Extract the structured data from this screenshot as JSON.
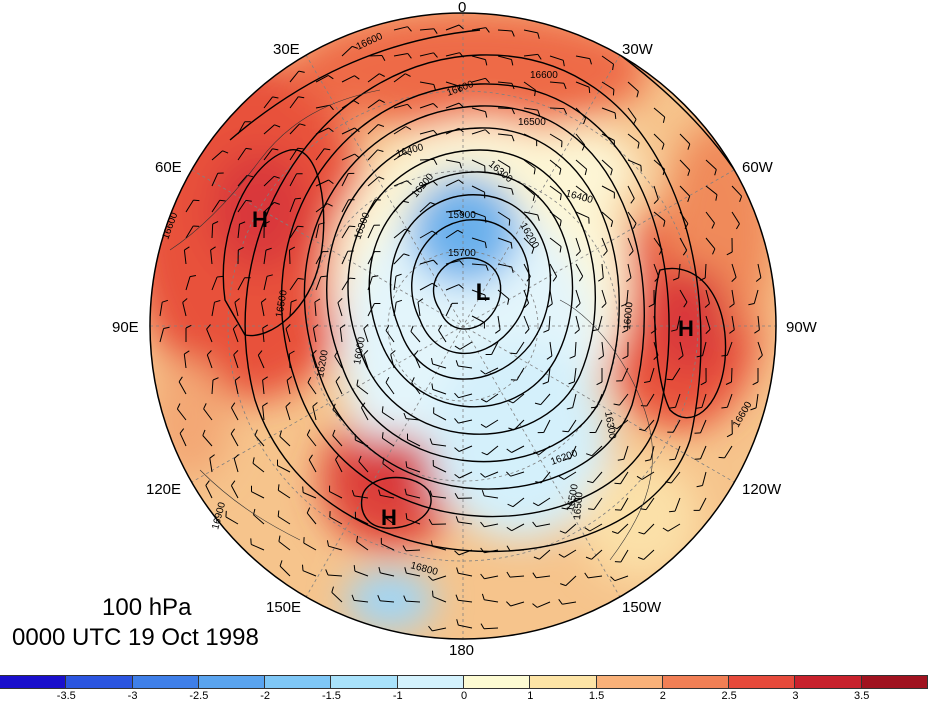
{
  "title": {
    "level": "100 hPa",
    "time": "0000 UTC 19 Oct 1998"
  },
  "map": {
    "projection": "north-polar-stereographic",
    "longitude_labels": {
      "lon_0": "0",
      "lon_30w": "30W",
      "lon_60w": "60W",
      "lon_90w": "90W",
      "lon_120w": "120W",
      "lon_150w": "150W",
      "lon_180": "180",
      "lon_150e": "150E",
      "lon_120e": "120E",
      "lon_90e": "90E",
      "lon_60e": "60E",
      "lon_30e": "30E"
    },
    "pressure_centers": [
      {
        "label": "H",
        "id": "high-west-europe-asia"
      },
      {
        "label": "L",
        "id": "low-pole"
      },
      {
        "label": "H",
        "id": "high-north-america"
      },
      {
        "label": "H",
        "id": "high-north-pacific"
      }
    ],
    "contour_labels": [
      "16600",
      "16600",
      "16600",
      "16600",
      "16500",
      "16500",
      "16500",
      "16400",
      "16400",
      "16300",
      "16300",
      "16200",
      "16200",
      "16200",
      "16000",
      "15900",
      "15700",
      "16300",
      "16000",
      "16600",
      "16800",
      "16500",
      "16200",
      "16900"
    ]
  },
  "colorbar": {
    "ticks": [
      "-3.5",
      "-3",
      "-2.5",
      "-2",
      "-1.5",
      "-1",
      "0",
      "1",
      "1.5",
      "2",
      "2.5",
      "3",
      "3.5"
    ],
    "colors": [
      "#1a0fcc",
      "#2b55e0",
      "#3f7fe8",
      "#5aa4ef",
      "#7fc7f6",
      "#a9e2fb",
      "#d4f2fd",
      "#fdfbd3",
      "#fde4a6",
      "#f9b179",
      "#f17f55",
      "#e64a3b",
      "#c8212c",
      "#a0121f"
    ]
  },
  "colors": {
    "contour": "#000000",
    "graticule": "#808080"
  }
}
